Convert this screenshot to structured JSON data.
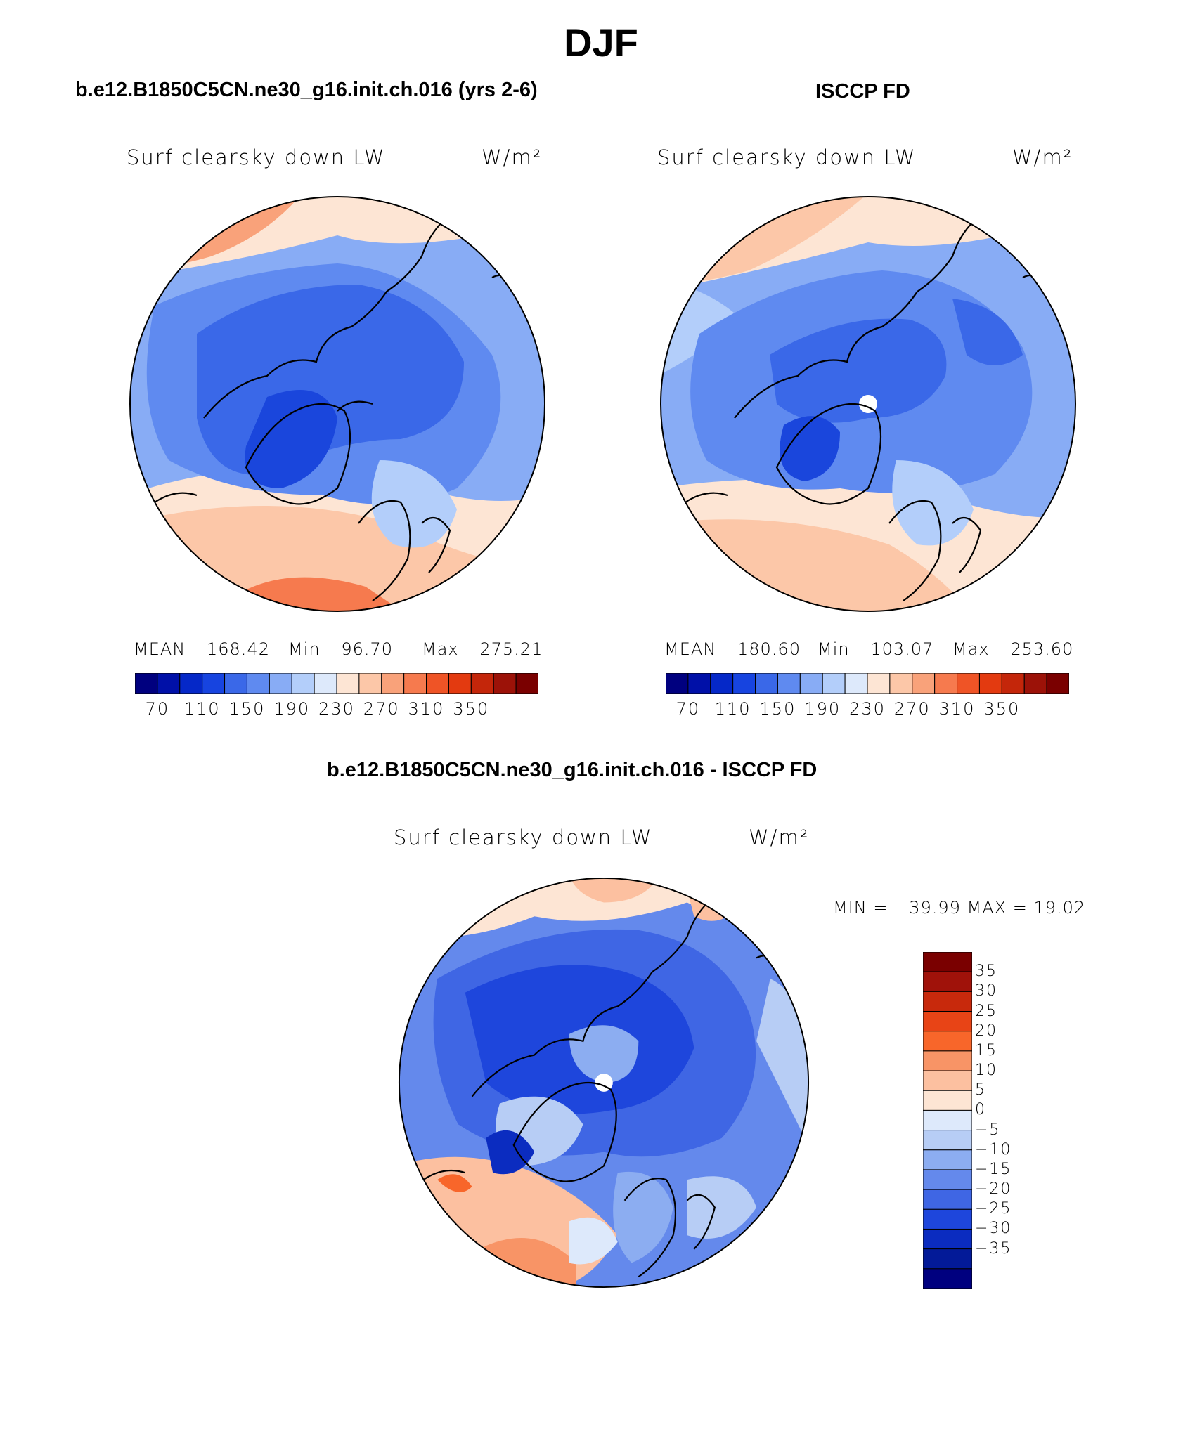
{
  "title": "DJF",
  "panels": [
    {
      "case_title": "b.e12.B1850C5CN.ne30_g16.init.ch.016 (yrs 2-6)",
      "variable": "Surf clearsky down LW",
      "units": "W/m²",
      "stats": {
        "mean": "MEAN= 168.42",
        "min": "Min=  96.70",
        "max": "Max= 275.21"
      }
    },
    {
      "case_title": "ISCCP FD",
      "variable": "Surf clearsky down LW",
      "units": "W/m²",
      "stats": {
        "mean": "MEAN= 180.60",
        "min": "Min= 103.07",
        "max": "Max= 253.60"
      }
    }
  ],
  "abs_colorbar": {
    "colors": [
      "#00007f",
      "#0010a8",
      "#0528c8",
      "#1744e0",
      "#3a68e8",
      "#5f8af0",
      "#88acf5",
      "#b3cefa",
      "#dde9fb",
      "#fde5d4",
      "#fcc7a8",
      "#f9a27a",
      "#f67a4e",
      "#ef5426",
      "#e33a10",
      "#c4260a",
      "#9c1208",
      "#7a0000"
    ],
    "labels": [
      "70",
      "110",
      "150",
      "190",
      "230",
      "270",
      "310",
      "350"
    ]
  },
  "diff_panel": {
    "case_title": "b.e12.B1850C5CN.ne30_g16.init.ch.016 - ISCCP FD",
    "variable": "Surf clearsky down LW",
    "units": "W/m²",
    "minmax": "MIN = −39.99 MAX =   19.02"
  },
  "diff_colorbar": {
    "colors": [
      "#7a0000",
      "#a0120a",
      "#c8290c",
      "#e84416",
      "#f8662a",
      "#f89466",
      "#fcc0a0",
      "#fde5d4",
      "#dde9fb",
      "#b7cdf5",
      "#8cadf1",
      "#6489ec",
      "#3f66e4",
      "#1e46dc",
      "#0b2cc0",
      "#031a98",
      "#00007f"
    ],
    "labels": [
      "35",
      "30",
      "25",
      "20",
      "15",
      "10",
      "5",
      "0",
      "−5",
      "−10",
      "−15",
      "−20",
      "−25",
      "−30",
      "−35"
    ]
  },
  "map_colors": {
    "deep_blue": "#1a46dc",
    "blue": "#3a68e8",
    "mid_blue": "#5f8af0",
    "light_blue": "#88acf5",
    "pale_blue": "#b3cefa",
    "very_pale_blue": "#dde9fb",
    "pale_orange": "#fde5d4",
    "light_orange": "#fcc7a8",
    "orange": "#f9a27a",
    "dark_orange": "#f67a4e"
  }
}
